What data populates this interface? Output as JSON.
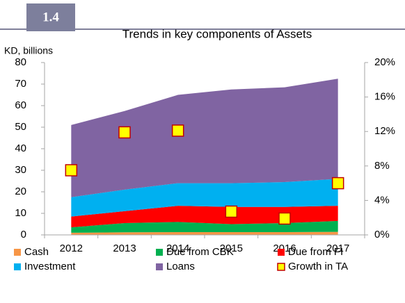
{
  "chart_data": {
    "type": "area",
    "badge": "1.4",
    "title": "Trends in key components of Assets",
    "y_label": "KD, billions",
    "categories": [
      "2012",
      "2013",
      "2014",
      "2015",
      "2016",
      "2017"
    ],
    "series": [
      {
        "name": "Cash",
        "color": "#f79646",
        "values": [
          1.0,
          1.2,
          1.3,
          1.3,
          1.3,
          1.4
        ]
      },
      {
        "name": "Due from CBK",
        "color": "#00b050",
        "values": [
          2.5,
          4.3,
          4.7,
          3.7,
          4.2,
          5.1
        ]
      },
      {
        "name": "Due from FI",
        "color": "#ff0000",
        "values": [
          5.0,
          5.5,
          7.5,
          8.0,
          7.5,
          7.0
        ]
      },
      {
        "name": "Investment",
        "color": "#00b0f0",
        "values": [
          9.0,
          10.0,
          10.5,
          11.0,
          11.5,
          12.5
        ]
      },
      {
        "name": "Loans",
        "color": "#8064a2",
        "values": [
          33.5,
          36.5,
          41.0,
          43.5,
          44.0,
          46.5
        ]
      },
      {
        "name": "Growth in TA",
        "color": "#ffff00",
        "type": "scatter",
        "axis": "y2",
        "values": [
          7.5,
          11.9,
          12.1,
          2.7,
          1.9,
          6.0
        ]
      }
    ],
    "ylim": [
      0,
      80
    ],
    "yticks": [
      0,
      10,
      20,
      30,
      40,
      50,
      60,
      70,
      80
    ],
    "y2lim": [
      0,
      20
    ],
    "y2ticks": [
      {
        "value": 0,
        "label": "0%"
      },
      {
        "value": 4,
        "label": "4%"
      },
      {
        "value": 8,
        "label": "8%"
      },
      {
        "value": 12,
        "label": "12%"
      },
      {
        "value": 16,
        "label": "16%"
      },
      {
        "value": 20,
        "label": "20%"
      }
    ],
    "stacked": true,
    "grid": false
  }
}
